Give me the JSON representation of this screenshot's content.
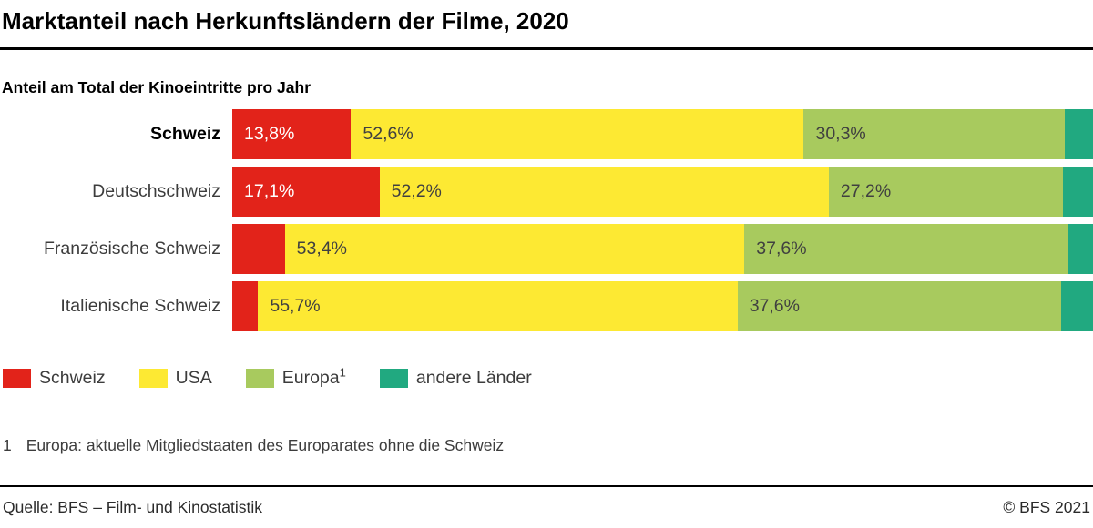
{
  "page": {
    "title": "Marktanteil nach Herkunftsländern der Filme, 2020",
    "subtitle": "Anteil am Total der Kinoeintritte pro Jahr"
  },
  "chart_data": {
    "type": "bar",
    "orientation": "horizontal",
    "stacked": true,
    "unit": "%",
    "xlim": [
      0,
      100
    ],
    "grid": false,
    "legend_position": "bottom",
    "categories": [
      "Schweiz",
      "Deutschschweiz",
      "Französische Schweiz",
      "Italienische Schweiz"
    ],
    "emphasized_category": "Schweiz",
    "series": [
      {
        "name": "Schweiz",
        "color": "#e2231a",
        "label_color": "#ffffff",
        "values": [
          13.8,
          17.1,
          6.1,
          3.0
        ],
        "value_labels": [
          "13,8%",
          "17,1%",
          "",
          ""
        ]
      },
      {
        "name": "USA",
        "color": "#fde933",
        "label_color": "#404040",
        "values": [
          52.6,
          52.2,
          53.4,
          55.7
        ],
        "value_labels": [
          "52,6%",
          "52,2%",
          "53,4%",
          "55,7%"
        ]
      },
      {
        "name": "Europa",
        "color": "#a8ca5e",
        "label_color": "#404040",
        "values": [
          30.3,
          27.2,
          37.6,
          37.6
        ],
        "value_labels": [
          "30,3%",
          "27,2%",
          "37,6%",
          "37,6%"
        ]
      },
      {
        "name": "andere Länder",
        "color": "#21a980",
        "label_color": "#ffffff",
        "values": [
          3.3,
          3.5,
          2.9,
          3.7
        ],
        "value_labels": [
          "",
          "",
          "",
          ""
        ]
      }
    ]
  },
  "legend": {
    "items": [
      {
        "label": "Schweiz",
        "superscript": "",
        "color": "#e2231a"
      },
      {
        "label": "USA",
        "superscript": "",
        "color": "#fde933"
      },
      {
        "label": "Europa",
        "superscript": "1",
        "color": "#a8ca5e"
      },
      {
        "label": "andere Länder",
        "superscript": "",
        "color": "#21a980"
      }
    ]
  },
  "footnote": {
    "marker": "1",
    "text": "Europa: aktuelle Mitgliedstaaten des Europarates ohne die Schweiz"
  },
  "footer": {
    "source": "Quelle: BFS – Film- und Kinostatistik",
    "copyright": "© BFS 2021"
  }
}
